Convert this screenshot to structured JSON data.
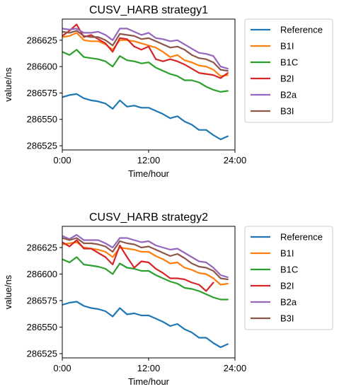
{
  "chart_data": [
    {
      "type": "line",
      "title": "CUSV_HARB strategy1",
      "xlabel": "Time/hour",
      "ylabel": "value/ns",
      "xlim": [
        0,
        24
      ],
      "ylim": [
        286521,
        286645
      ],
      "xticks": [
        0,
        12,
        24
      ],
      "xtick_labels": [
        "0:00",
        "12:00",
        "24:00"
      ],
      "yticks": [
        286525,
        286550,
        286575,
        286600,
        286625
      ],
      "ytick_labels": [
        "286525",
        "286550",
        "286575",
        "286600",
        "286625"
      ],
      "grid": false,
      "legend_position": "outside-right",
      "series": [
        {
          "name": "Reference",
          "color": "#1f77b4",
          "x": [
            0,
            1,
            2,
            3,
            4,
            5,
            6,
            7,
            8,
            9,
            10,
            11,
            12,
            13,
            14,
            15,
            16,
            17,
            18,
            19,
            20,
            21,
            22,
            23
          ],
          "values": [
            286571,
            286573,
            286574,
            286570,
            286568,
            286567,
            286565,
            286560,
            286568,
            286562,
            286563,
            286561,
            286561,
            286558,
            286555,
            286551,
            286553,
            286548,
            286545,
            286540,
            286540,
            286535,
            286531,
            286534
          ]
        },
        {
          "name": "B1I",
          "color": "#ff7f0e",
          "x": [
            0,
            1,
            2,
            3,
            4,
            5,
            6,
            7,
            8,
            9,
            10,
            11,
            12,
            13,
            14,
            15,
            16,
            17,
            18,
            19,
            20,
            21,
            22,
            23
          ],
          "values": [
            286628,
            286629,
            286632,
            286625,
            286624,
            286624,
            286621,
            286616,
            286625,
            286625,
            286624,
            286622,
            286620,
            286618,
            286614,
            286609,
            286611,
            286606,
            286604,
            286601,
            286600,
            286597,
            286591,
            286592
          ]
        },
        {
          "name": "B1C",
          "color": "#2ca02c",
          "x": [
            0,
            1,
            2,
            3,
            4,
            5,
            6,
            7,
            8,
            9,
            10,
            11,
            12,
            13,
            14,
            15,
            16,
            17,
            18,
            19,
            20,
            21,
            22,
            23
          ],
          "values": [
            286614,
            286611,
            286616,
            286609,
            286608,
            286607,
            286605,
            286600,
            286610,
            286606,
            286605,
            286603,
            286604,
            286599,
            286596,
            286593,
            286591,
            286587,
            286587,
            286585,
            286581,
            286578,
            286576,
            286577
          ]
        },
        {
          "name": "B2I",
          "color": "#d62728",
          "x": [
            0,
            1,
            2,
            3,
            4,
            5,
            6,
            7,
            8,
            9,
            10,
            11,
            12,
            13,
            14,
            15,
            16,
            17,
            18,
            19,
            20,
            21,
            22,
            23
          ],
          "values": [
            286629,
            286634,
            286640,
            286628,
            286630,
            286626,
            286622,
            286614,
            286627,
            286626,
            286619,
            286616,
            286619,
            286607,
            286605,
            286607,
            286605,
            286602,
            286598,
            286594,
            286593,
            286592,
            286589,
            286594
          ]
        },
        {
          "name": "B2a",
          "color": "#9467bd",
          "x": [
            0,
            1,
            2,
            3,
            4,
            5,
            6,
            7,
            8,
            9,
            10,
            11,
            12,
            13,
            14,
            15,
            16,
            17,
            18,
            19,
            20,
            21,
            22,
            23
          ],
          "values": [
            286636,
            286635,
            286636,
            286632,
            286632,
            286633,
            286630,
            286625,
            286636,
            286636,
            286633,
            286630,
            286632,
            286627,
            286626,
            286624,
            286625,
            286621,
            286617,
            286613,
            286612,
            286610,
            286600,
            286598
          ]
        },
        {
          "name": "B3I",
          "color": "#8c564b",
          "x": [
            0,
            1,
            2,
            3,
            4,
            5,
            6,
            7,
            8,
            9,
            10,
            11,
            12,
            13,
            14,
            15,
            16,
            17,
            18,
            19,
            20,
            21,
            22,
            23
          ],
          "values": [
            286633,
            286632,
            286634,
            286629,
            286628,
            286628,
            286625,
            286620,
            286631,
            286630,
            286629,
            286626,
            286627,
            286624,
            286621,
            286618,
            286619,
            286616,
            286611,
            286608,
            286607,
            286604,
            286597,
            286596
          ]
        }
      ]
    },
    {
      "type": "line",
      "title": "CUSV_HARB strategy2",
      "xlabel": "Time/hour",
      "ylabel": "value/ns",
      "xlim": [
        0,
        24
      ],
      "ylim": [
        286521,
        286645
      ],
      "xticks": [
        0,
        12,
        24
      ],
      "xtick_labels": [
        "0:00",
        "12:00",
        "24:00"
      ],
      "yticks": [
        286525,
        286550,
        286575,
        286600,
        286625
      ],
      "ytick_labels": [
        "286525",
        "286550",
        "286575",
        "286600",
        "286625"
      ],
      "grid": false,
      "legend_position": "outside-right",
      "series": [
        {
          "name": "Reference",
          "color": "#1f77b4",
          "x": [
            0,
            1,
            2,
            3,
            4,
            5,
            6,
            7,
            8,
            9,
            10,
            11,
            12,
            13,
            14,
            15,
            16,
            17,
            18,
            19,
            20,
            21,
            22,
            23
          ],
          "values": [
            286571,
            286573,
            286574,
            286570,
            286568,
            286567,
            286565,
            286560,
            286568,
            286562,
            286563,
            286561,
            286561,
            286558,
            286555,
            286551,
            286553,
            286548,
            286545,
            286540,
            286540,
            286535,
            286531,
            286534
          ]
        },
        {
          "name": "B1I",
          "color": "#ff7f0e",
          "x": [
            0,
            1,
            2,
            3,
            4,
            5,
            6,
            7,
            8,
            9,
            10,
            11,
            12,
            13,
            14,
            15,
            16,
            17,
            18,
            19,
            20,
            21,
            22,
            23
          ],
          "values": [
            286628,
            286629,
            286630,
            286625,
            286624,
            286623,
            286621,
            286616,
            286625,
            286624,
            286623,
            286621,
            286621,
            286617,
            286614,
            286610,
            286611,
            286606,
            286604,
            286601,
            286600,
            286596,
            286590,
            286591
          ]
        },
        {
          "name": "B1C",
          "color": "#2ca02c",
          "x": [
            0,
            1,
            2,
            3,
            4,
            5,
            6,
            7,
            8,
            9,
            10,
            11,
            12,
            13,
            14,
            15,
            16,
            17,
            18,
            19,
            20,
            21,
            22,
            23
          ],
          "values": [
            286614,
            286611,
            286616,
            286609,
            286608,
            286607,
            286605,
            286600,
            286610,
            286606,
            286605,
            286603,
            286603,
            286599,
            286596,
            286593,
            286591,
            286587,
            286586,
            286584,
            286581,
            286578,
            286576,
            286576
          ]
        },
        {
          "name": "B2I",
          "color": "#d62728",
          "x": [
            0,
            1,
            2,
            3,
            4,
            5,
            6,
            7,
            8,
            9,
            10,
            11,
            12,
            13,
            14,
            15,
            16,
            17,
            18,
            19,
            20,
            21
          ],
          "values": [
            286630,
            286626,
            286632,
            286624,
            286624,
            286620,
            286616,
            286609,
            286627,
            286616,
            286606,
            286612,
            286611,
            286605,
            286601,
            286596,
            286596,
            286595,
            286592,
            286590,
            286584,
            286592
          ]
        },
        {
          "name": "B2a",
          "color": "#9467bd",
          "x": [
            0,
            1,
            2,
            3,
            4,
            5,
            6,
            7,
            8,
            9,
            10,
            11,
            12,
            13,
            14,
            15,
            16,
            17,
            18,
            19,
            20,
            21,
            22,
            23
          ],
          "values": [
            286636,
            286633,
            286637,
            286632,
            286632,
            286632,
            286629,
            286625,
            286634,
            286634,
            286632,
            286630,
            286631,
            286627,
            286625,
            286623,
            286624,
            286620,
            286616,
            286612,
            286611,
            286606,
            286599,
            286597
          ]
        },
        {
          "name": "B3I",
          "color": "#8c564b",
          "x": [
            0,
            1,
            2,
            3,
            4,
            5,
            6,
            7,
            8,
            9,
            10,
            11,
            12,
            13,
            14,
            15,
            16,
            17,
            18,
            19,
            20,
            21,
            22,
            23
          ],
          "values": [
            286634,
            286632,
            286634,
            286629,
            286629,
            286628,
            286626,
            286621,
            286631,
            286629,
            286628,
            286625,
            286626,
            286623,
            286620,
            286617,
            286619,
            286615,
            286610,
            286607,
            286606,
            286603,
            286596,
            286595
          ]
        }
      ]
    }
  ]
}
